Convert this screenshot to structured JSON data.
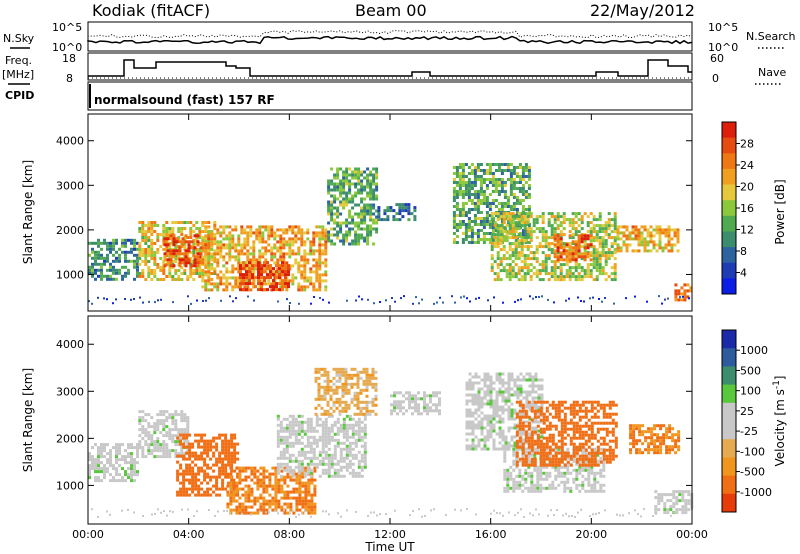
{
  "header": {
    "station": "Kodiak (fitACF)",
    "beam": "Beam 00",
    "date": "22/May/2012"
  },
  "left_labels": {
    "nsky": "N.Sky",
    "freq_line1": "Freq.",
    "freq_line2": "[MHz]",
    "cpid": "CPID"
  },
  "right_labels": {
    "nsearch": "N.Search",
    "nave": "Nave"
  },
  "noise_panel": {
    "left_ticks": [
      "10^5",
      "10^0"
    ],
    "right_ticks": [
      "10^5",
      "10^0"
    ]
  },
  "freq_panel": {
    "left_ticks": [
      "18",
      "8"
    ],
    "right_ticks": [
      "60",
      "0"
    ]
  },
  "cpid_panel": {
    "text": "normalsound (fast) 157 RF"
  },
  "legend_colors": {
    "power": [
      "#0a1ee6",
      "#1e3cb4",
      "#2d64a0",
      "#3c8c6e",
      "#50aa50",
      "#8cc83c",
      "#e6c83c",
      "#f0a01e",
      "#f07814",
      "#e64b0f",
      "#dc1e0a"
    ],
    "velocity": [
      "#1a2aa8",
      "#2e5a9e",
      "#3c8c6e",
      "#5ac83c",
      "#c8c8c8",
      "#c8c8c8",
      "#e6aa50",
      "#f0961e",
      "#f06e14",
      "#e63c0a"
    ]
  },
  "chart_data": [
    {
      "type": "heatmap",
      "title": "",
      "xlabel": "Time UT",
      "ylabel": "Slant Range [km]",
      "x_ticks": [
        "00:00",
        "04:00",
        "08:00",
        "12:00",
        "16:00",
        "20:00",
        "00:00"
      ],
      "y_ticks": [
        "1000",
        "2000",
        "3000",
        "4000"
      ],
      "xlim_hours": [
        0,
        24
      ],
      "ylim_km": [
        180,
        4600
      ],
      "colorbar": {
        "label": "Power [dB]",
        "ticks": [
          "4",
          "8",
          "12",
          "16",
          "20",
          "24",
          "28"
        ],
        "range": [
          0,
          30
        ]
      },
      "regions": [
        {
          "t0": 0.0,
          "t1": 2.0,
          "r0": 900,
          "r1": 1800,
          "value": 10
        },
        {
          "t0": 2.0,
          "t1": 5.0,
          "r0": 900,
          "r1": 2200,
          "value": 18
        },
        {
          "t0": 3.0,
          "t1": 4.5,
          "r0": 1200,
          "r1": 1900,
          "value": 26
        },
        {
          "t0": 4.5,
          "t1": 9.5,
          "r0": 650,
          "r1": 2100,
          "value": 20
        },
        {
          "t0": 6.0,
          "t1": 8.0,
          "r0": 650,
          "r1": 1300,
          "value": 27
        },
        {
          "t0": 9.5,
          "t1": 11.5,
          "r0": 1700,
          "r1": 3400,
          "value": 12
        },
        {
          "t0": 11.5,
          "t1": 13.0,
          "r0": 2200,
          "r1": 2600,
          "value": 8
        },
        {
          "t0": 14.5,
          "t1": 17.5,
          "r0": 1700,
          "r1": 3500,
          "value": 12
        },
        {
          "t0": 16.0,
          "t1": 21.0,
          "r0": 900,
          "r1": 2400,
          "value": 16
        },
        {
          "t0": 18.5,
          "t1": 20.0,
          "r0": 1300,
          "r1": 1900,
          "value": 25
        },
        {
          "t0": 21.0,
          "t1": 23.5,
          "r0": 1500,
          "r1": 2100,
          "value": 20
        },
        {
          "t0": 23.3,
          "t1": 24.0,
          "r0": 400,
          "r1": 800,
          "value": 23
        }
      ]
    },
    {
      "type": "heatmap",
      "title": "",
      "xlabel": "Time UT",
      "ylabel": "Slant Range [km]",
      "x_ticks": [
        "00:00",
        "04:00",
        "08:00",
        "12:00",
        "16:00",
        "20:00",
        "00:00"
      ],
      "y_ticks": [
        "1000",
        "2000",
        "3000",
        "4000"
      ],
      "xlim_hours": [
        0,
        24
      ],
      "ylim_km": [
        180,
        4600
      ],
      "colorbar": {
        "label": "Velocity [m s^-1]",
        "ticks": [
          "1000",
          "500",
          "100",
          "25",
          "-25",
          "-100",
          "-500",
          "-1000"
        ],
        "range": [
          -1250,
          1250
        ]
      },
      "regions": [
        {
          "t0": 0.0,
          "t1": 2.0,
          "r0": 1100,
          "r1": 1900,
          "value": 0
        },
        {
          "t0": 2.0,
          "t1": 4.0,
          "r0": 1600,
          "r1": 2600,
          "value": 0
        },
        {
          "t0": 3.5,
          "t1": 6.0,
          "r0": 800,
          "r1": 2100,
          "value": -500
        },
        {
          "t0": 5.5,
          "t1": 9.0,
          "r0": 400,
          "r1": 1400,
          "value": -300
        },
        {
          "t0": 7.5,
          "t1": 11.0,
          "r0": 1200,
          "r1": 2500,
          "value": 0
        },
        {
          "t0": 9.0,
          "t1": 11.5,
          "r0": 2500,
          "r1": 3500,
          "value": -80
        },
        {
          "t0": 12.0,
          "t1": 14.0,
          "r0": 2500,
          "r1": 3000,
          "value": 0
        },
        {
          "t0": 15.0,
          "t1": 18.0,
          "r0": 1800,
          "r1": 3400,
          "value": 0
        },
        {
          "t0": 16.5,
          "t1": 20.5,
          "r0": 900,
          "r1": 1800,
          "value": 0
        },
        {
          "t0": 17.0,
          "t1": 21.0,
          "r0": 1400,
          "r1": 2800,
          "value": -350
        },
        {
          "t0": 21.5,
          "t1": 23.5,
          "r0": 1700,
          "r1": 2300,
          "value": -300
        },
        {
          "t0": 22.5,
          "t1": 24.0,
          "r0": 400,
          "r1": 900,
          "value": 0
        }
      ]
    }
  ]
}
